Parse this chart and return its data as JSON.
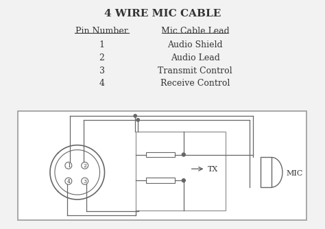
{
  "title": "4 WIRE MIC CABLE",
  "title_fontsize": 11,
  "bg_color": "#f2f2f2",
  "pin_header": "Pin Number",
  "lead_header": "Mic Cable Lead",
  "pins": [
    "1",
    "2",
    "3",
    "4"
  ],
  "leads": [
    "Audio Shield",
    "Audio Lead",
    "Transmit Control",
    "Receive Control"
  ],
  "line_color": "#666666",
  "text_color": "#333333",
  "box_edge_color": "#999999"
}
